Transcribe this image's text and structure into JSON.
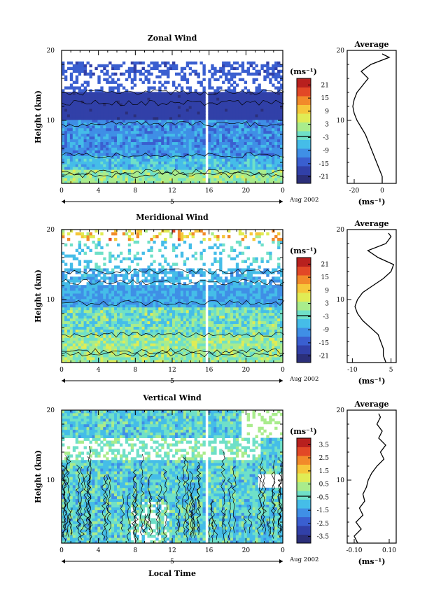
{
  "figure": {
    "date_label": "Aug 2002",
    "day_label": "5",
    "bottom_xlabel": "Local Time"
  },
  "chart_data": [
    {
      "type": "heatmap",
      "title": "Zonal Wind",
      "xlabel": "",
      "ylabel": "Height (km)",
      "x_ticks": [
        "0",
        "4",
        "8",
        "12",
        "16",
        "20",
        "0"
      ],
      "xlim": [
        0,
        24
      ],
      "y_ticks": [
        "20",
        "10"
      ],
      "ylim": [
        1,
        20
      ],
      "colorbar": {
        "unit": "(ms⁻¹)",
        "ticks": [
          "21",
          "15",
          "9",
          "3",
          "-3",
          "-9",
          "-15",
          "-21"
        ],
        "range": [
          -24,
          24
        ]
      },
      "average_profile": {
        "title": "Average",
        "x_ticks": [
          "-20",
          "0"
        ],
        "xlim": [
          -25,
          10
        ],
        "unit": "(ms⁻¹)",
        "height": [
          1,
          2,
          3,
          4,
          5,
          6,
          7,
          8,
          9,
          10,
          11,
          12,
          13,
          14,
          15,
          16,
          17,
          18,
          19,
          19.5
        ],
        "value": [
          0,
          0,
          -2,
          -4,
          -6,
          -8,
          -10,
          -12,
          -15,
          -18,
          -20,
          -21,
          -20,
          -18,
          -14,
          -10,
          -15,
          -8,
          5,
          0
        ]
      }
    },
    {
      "type": "heatmap",
      "title": "Meridional Wind",
      "xlabel": "",
      "ylabel": "Height (km)",
      "x_ticks": [
        "0",
        "4",
        "8",
        "12",
        "16",
        "20",
        "0"
      ],
      "xlim": [
        0,
        24
      ],
      "y_ticks": [
        "20",
        "10"
      ],
      "ylim": [
        1,
        20
      ],
      "colorbar": {
        "unit": "(ms⁻¹)",
        "ticks": [
          "21",
          "15",
          "9",
          "3",
          "-3",
          "-9",
          "-15",
          "-21"
        ],
        "range": [
          -24,
          24
        ]
      },
      "average_profile": {
        "title": "Average",
        "x_ticks": [
          "-10",
          "5"
        ],
        "xlim": [
          -12,
          7
        ],
        "unit": "(ms⁻¹)",
        "height": [
          1,
          2,
          3,
          4,
          5,
          6,
          7,
          8,
          9,
          10,
          11,
          12,
          13,
          14,
          15,
          16,
          17,
          18,
          19,
          19.5
        ],
        "value": [
          3,
          2,
          2,
          1,
          0,
          -3,
          -6,
          -8,
          -9,
          -8,
          -6,
          -2,
          2,
          5,
          6,
          0,
          -4,
          3,
          5,
          4
        ]
      }
    },
    {
      "type": "heatmap",
      "title": "Vertical Wind",
      "xlabel": "Local Time",
      "ylabel": "Height (km)",
      "x_ticks": [
        "0",
        "4",
        "8",
        "12",
        "16",
        "20",
        "0"
      ],
      "xlim": [
        0,
        24
      ],
      "y_ticks": [
        "20",
        "10"
      ],
      "ylim": [
        1,
        20
      ],
      "colorbar": {
        "unit": "(ms⁻¹)",
        "ticks": [
          "3.5",
          "2.5",
          "1.5",
          "0.5",
          "-0.5",
          "-1.5",
          "-2.5",
          "-3.5"
        ],
        "range": [
          -4,
          4
        ]
      },
      "average_profile": {
        "title": "Average",
        "x_ticks": [
          "-0.10",
          "0.10"
        ],
        "xlim": [
          -0.14,
          0.14
        ],
        "unit": "(ms⁻¹)",
        "height": [
          1,
          2,
          3,
          4,
          5,
          6,
          7,
          8,
          9,
          10,
          11,
          12,
          13,
          14,
          15,
          16,
          17,
          18,
          19,
          19.5
        ],
        "value": [
          -0.08,
          -0.1,
          -0.06,
          -0.09,
          -0.05,
          -0.07,
          -0.04,
          -0.05,
          -0.03,
          -0.02,
          0.0,
          0.03,
          0.07,
          0.05,
          0.08,
          0.04,
          0.06,
          0.03,
          0.05,
          0.04
        ]
      }
    }
  ]
}
